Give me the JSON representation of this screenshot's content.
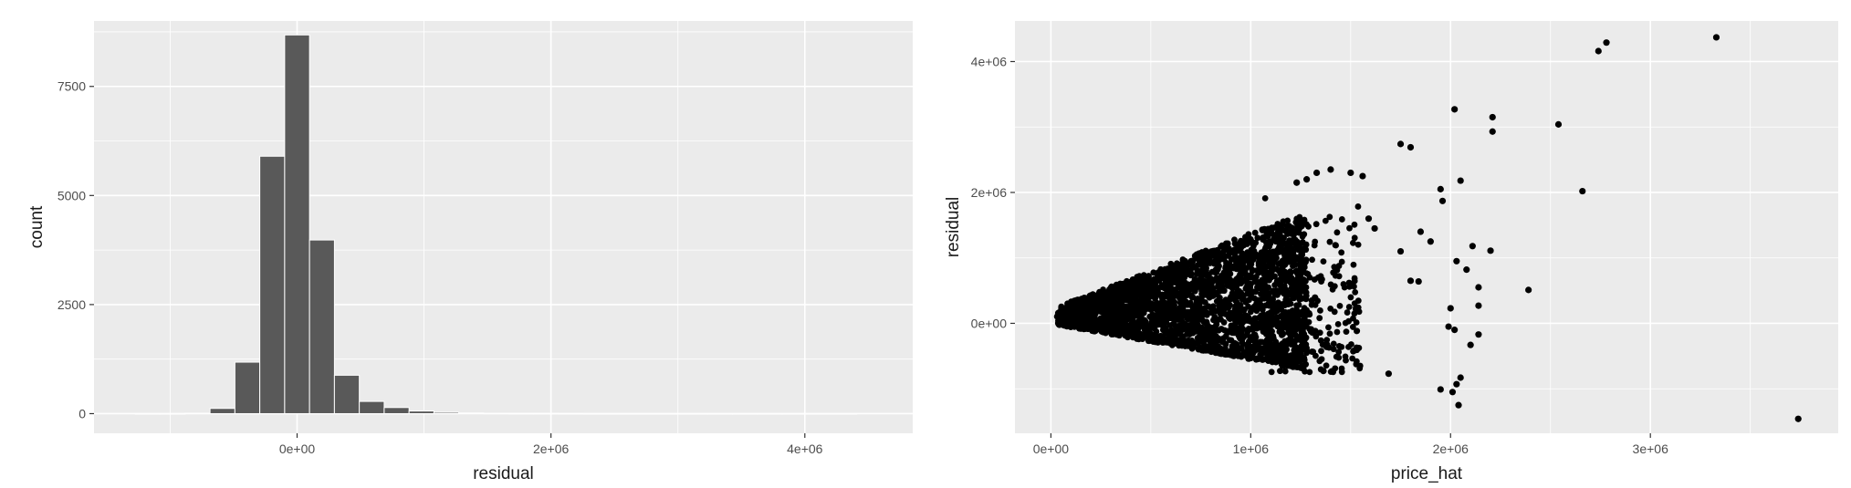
{
  "chart_data": [
    {
      "type": "histogram",
      "xlabel": "residual",
      "ylabel": "count",
      "xlim": [
        -1600000,
        4850000
      ],
      "ylim": [
        -450,
        9000
      ],
      "x_ticks": [
        {
          "value": 0,
          "label": "0e+00"
        },
        {
          "value": 2000000,
          "label": "2e+06"
        },
        {
          "value": 4000000,
          "label": "4e+06"
        }
      ],
      "y_ticks": [
        {
          "value": 0,
          "label": "0"
        },
        {
          "value": 2500,
          "label": "2500"
        },
        {
          "value": 5000,
          "label": "5000"
        },
        {
          "value": 7500,
          "label": "7500"
        }
      ],
      "bin_width": 196000,
      "bins": [
        {
          "x": -1176000,
          "count": 0
        },
        {
          "x": -980000,
          "count": 0
        },
        {
          "x": -784000,
          "count": 10
        },
        {
          "x": -588000,
          "count": 120
        },
        {
          "x": -392000,
          "count": 1180
        },
        {
          "x": -196000,
          "count": 5900
        },
        {
          "x": 0,
          "count": 8680
        },
        {
          "x": 196000,
          "count": 3980
        },
        {
          "x": 392000,
          "count": 880
        },
        {
          "x": 588000,
          "count": 280
        },
        {
          "x": 784000,
          "count": 140
        },
        {
          "x": 980000,
          "count": 60
        },
        {
          "x": 1176000,
          "count": 30
        },
        {
          "x": 1372000,
          "count": 15
        },
        {
          "x": 1568000,
          "count": 8
        },
        {
          "x": 1764000,
          "count": 5
        },
        {
          "x": 1960000,
          "count": 3
        },
        {
          "x": 2156000,
          "count": 2
        },
        {
          "x": 2352000,
          "count": 1
        },
        {
          "x": 2548000,
          "count": 1
        },
        {
          "x": 2744000,
          "count": 1
        },
        {
          "x": 2940000,
          "count": 1
        },
        {
          "x": 3136000,
          "count": 1
        },
        {
          "x": 3332000,
          "count": 0
        },
        {
          "x": 3528000,
          "count": 0
        },
        {
          "x": 3724000,
          "count": 0
        },
        {
          "x": 3920000,
          "count": 0
        },
        {
          "x": 4116000,
          "count": 1
        },
        {
          "x": 4312000,
          "count": 1
        }
      ],
      "colors": {
        "bar_fill": "#595959",
        "bar_stroke": "#ffffff",
        "panel_bg": "#ebebeb",
        "grid": "#ffffff"
      }
    },
    {
      "type": "scatter",
      "xlabel": "price_hat",
      "ylabel": "residual",
      "xlim": [
        -180000,
        3940000
      ],
      "ylim": [
        -1680000,
        4620000
      ],
      "x_ticks": [
        {
          "value": 0,
          "label": "0e+00"
        },
        {
          "value": 1000000,
          "label": "1e+06"
        },
        {
          "value": 2000000,
          "label": "2e+06"
        },
        {
          "value": 3000000,
          "label": "3e+06"
        }
      ],
      "y_ticks": [
        {
          "value": 0,
          "label": "0e+00"
        },
        {
          "value": 2000000,
          "label": "2e+06"
        },
        {
          "value": 4000000,
          "label": "4e+06"
        }
      ],
      "outliers": [
        [
          3330000,
          4370000
        ],
        [
          2780000,
          4290000
        ],
        [
          2740000,
          4160000
        ],
        [
          2020000,
          3270000
        ],
        [
          2210000,
          3150000
        ],
        [
          2210000,
          2930000
        ],
        [
          2540000,
          3040000
        ],
        [
          1750000,
          2740000
        ],
        [
          1800000,
          2690000
        ],
        [
          2660000,
          2020000
        ],
        [
          2050000,
          2180000
        ],
        [
          1950000,
          2050000
        ],
        [
          1960000,
          1870000
        ],
        [
          1590000,
          1600000
        ],
        [
          1620000,
          1450000
        ],
        [
          1850000,
          1400000
        ],
        [
          1900000,
          1250000
        ],
        [
          2110000,
          1180000
        ],
        [
          2200000,
          1110000
        ],
        [
          2030000,
          950000
        ],
        [
          2080000,
          820000
        ],
        [
          1750000,
          1100000
        ],
        [
          1800000,
          650000
        ],
        [
          1840000,
          640000
        ],
        [
          2140000,
          550000
        ],
        [
          2390000,
          510000
        ],
        [
          2140000,
          270000
        ],
        [
          2000000,
          230000
        ],
        [
          1990000,
          -50000
        ],
        [
          2020000,
          -100000
        ],
        [
          2140000,
          -170000
        ],
        [
          2100000,
          -330000
        ],
        [
          2050000,
          -830000
        ],
        [
          2030000,
          -930000
        ],
        [
          2010000,
          -1050000
        ],
        [
          1950000,
          -1010000
        ],
        [
          2040000,
          -1250000
        ],
        [
          1690000,
          -770000
        ],
        [
          3740000,
          -1460000
        ],
        [
          1400000,
          2350000
        ],
        [
          1330000,
          2300000
        ],
        [
          1500000,
          2300000
        ],
        [
          1280000,
          2200000
        ],
        [
          1560000,
          2250000
        ],
        [
          1230000,
          2150000
        ]
      ],
      "cloud": {
        "x_start": 30000,
        "x_end": 1280000,
        "y_center_start": 120000,
        "y_center_end": 70000,
        "top_start": 250000,
        "top_end": 1700000,
        "bottom_start": -20000,
        "bottom_end": -700000,
        "points": 2600
      },
      "colors": {
        "point": "#000000",
        "panel_bg": "#ebebeb",
        "grid": "#ffffff"
      }
    }
  ]
}
